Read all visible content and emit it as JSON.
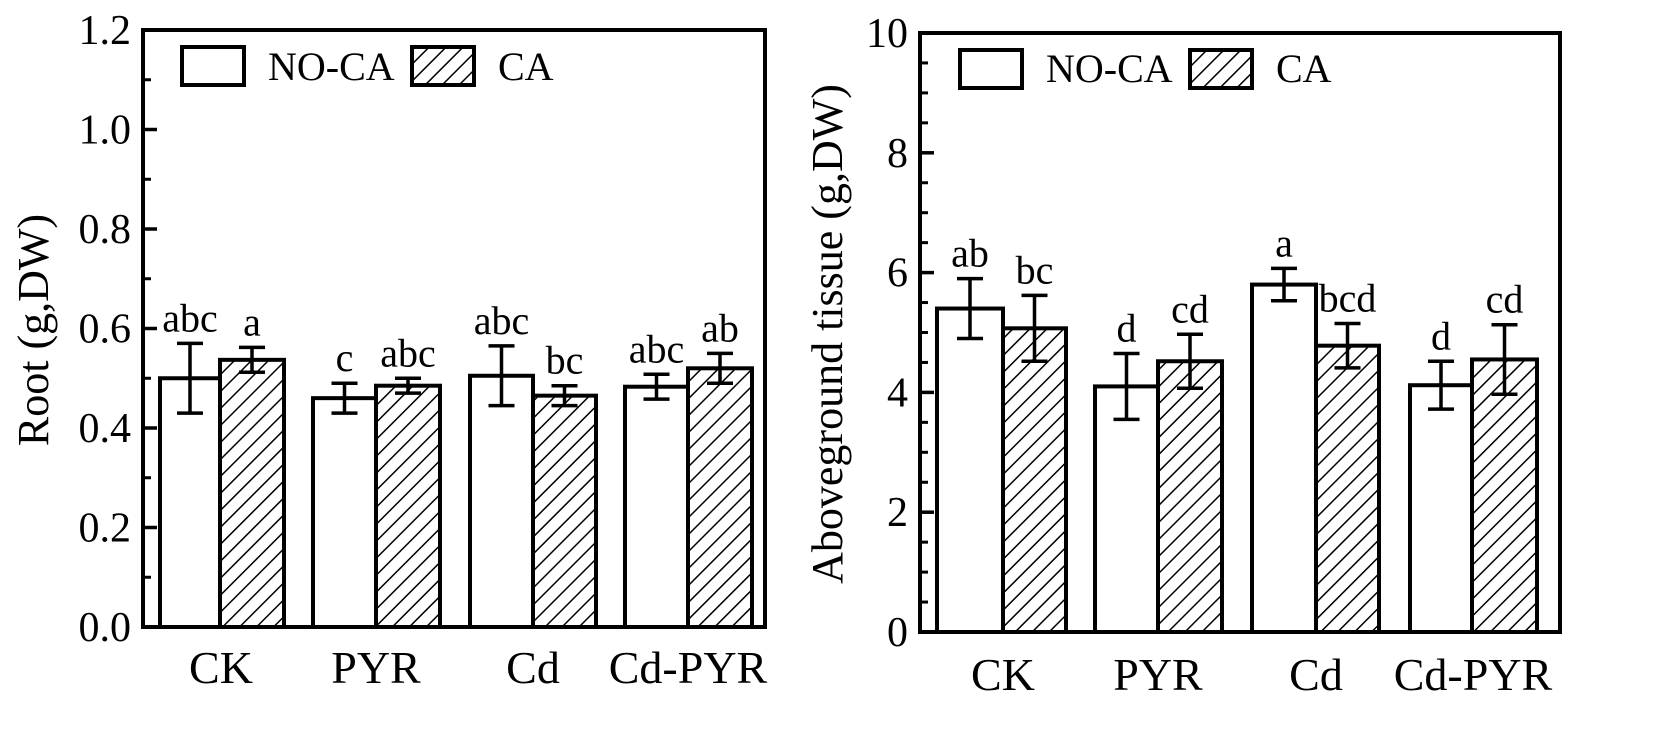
{
  "legend": {
    "no_ca": "NO-CA",
    "ca": "CA"
  },
  "chart_data": [
    {
      "type": "bar",
      "title": "",
      "xlabel": "",
      "ylabel": "Root (g,DW)",
      "ylim": [
        0,
        1.2
      ],
      "yticks": [
        "0.0",
        "0.2",
        "0.4",
        "0.6",
        "0.8",
        "1.0",
        "1.2"
      ],
      "ytick_values": [
        0,
        0.2,
        0.4,
        0.6,
        0.8,
        1.0,
        1.2
      ],
      "categories": [
        "CK",
        "PYR",
        "Cd",
        "Cd-PYR"
      ],
      "legend_position": "top-left",
      "series": [
        {
          "name": "NO-CA",
          "pattern": "open",
          "values": [
            0.5,
            0.46,
            0.505,
            0.483
          ],
          "errors": [
            0.07,
            0.03,
            0.06,
            0.025
          ],
          "labels": [
            "abc",
            "c",
            "abc",
            "abc"
          ]
        },
        {
          "name": "CA",
          "pattern": "hatched",
          "values": [
            0.537,
            0.485,
            0.465,
            0.52
          ],
          "errors": [
            0.025,
            0.015,
            0.02,
            0.03
          ],
          "labels": [
            "a",
            "abc",
            "bc",
            "ab"
          ]
        }
      ]
    },
    {
      "type": "bar",
      "title": "",
      "xlabel": "",
      "ylabel": "Aboveground tissue (g,DW)",
      "ylim": [
        0,
        10
      ],
      "yticks": [
        "0",
        "2",
        "4",
        "6",
        "8",
        "10"
      ],
      "ytick_values": [
        0,
        2,
        4,
        6,
        8,
        10
      ],
      "categories": [
        "CK",
        "PYR",
        "Cd",
        "Cd-PYR"
      ],
      "legend_position": "top-left",
      "series": [
        {
          "name": "NO-CA",
          "pattern": "open",
          "values": [
            5.4,
            4.1,
            5.8,
            4.12
          ],
          "errors": [
            0.5,
            0.55,
            0.27,
            0.4
          ],
          "labels": [
            "ab",
            "d",
            "a",
            "d"
          ]
        },
        {
          "name": "CA",
          "pattern": "hatched",
          "values": [
            5.07,
            4.52,
            4.78,
            4.55
          ],
          "errors": [
            0.55,
            0.45,
            0.37,
            0.58
          ],
          "labels": [
            "bc",
            "cd",
            "bcd",
            "cd"
          ]
        }
      ]
    }
  ]
}
